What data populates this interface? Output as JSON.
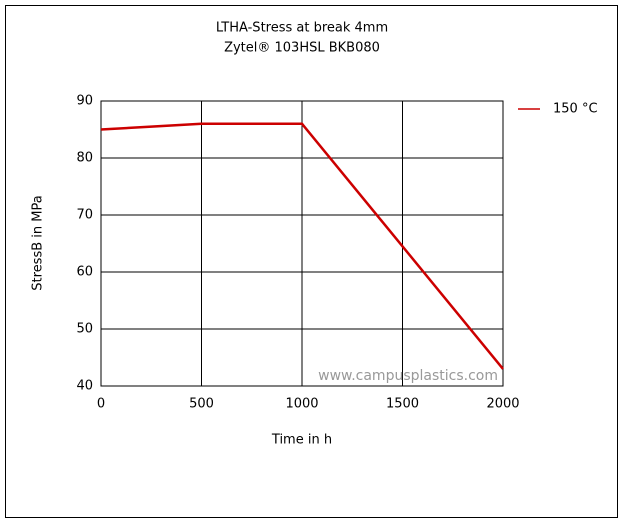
{
  "chart_data": {
    "type": "line",
    "title": "LTHA-Stress at break 4mm",
    "subtitle": "Zytel® 103HSL BKB080",
    "x_label": "Time in h",
    "y_label": "StressB in MPa",
    "watermark": "www.campusplastics.com",
    "x": [
      0,
      500,
      1000,
      2000
    ],
    "series": [
      {
        "name": "150 °C",
        "color": "#cc0000",
        "values": [
          85,
          86,
          86,
          43
        ]
      }
    ],
    "xlim": [
      0,
      2000
    ],
    "xticks": [
      0,
      500,
      1000,
      1500,
      2000
    ],
    "ylim": [
      40,
      90
    ],
    "yticks": [
      40,
      50,
      60,
      70,
      80,
      90
    ],
    "grid": true,
    "legend": "right"
  }
}
